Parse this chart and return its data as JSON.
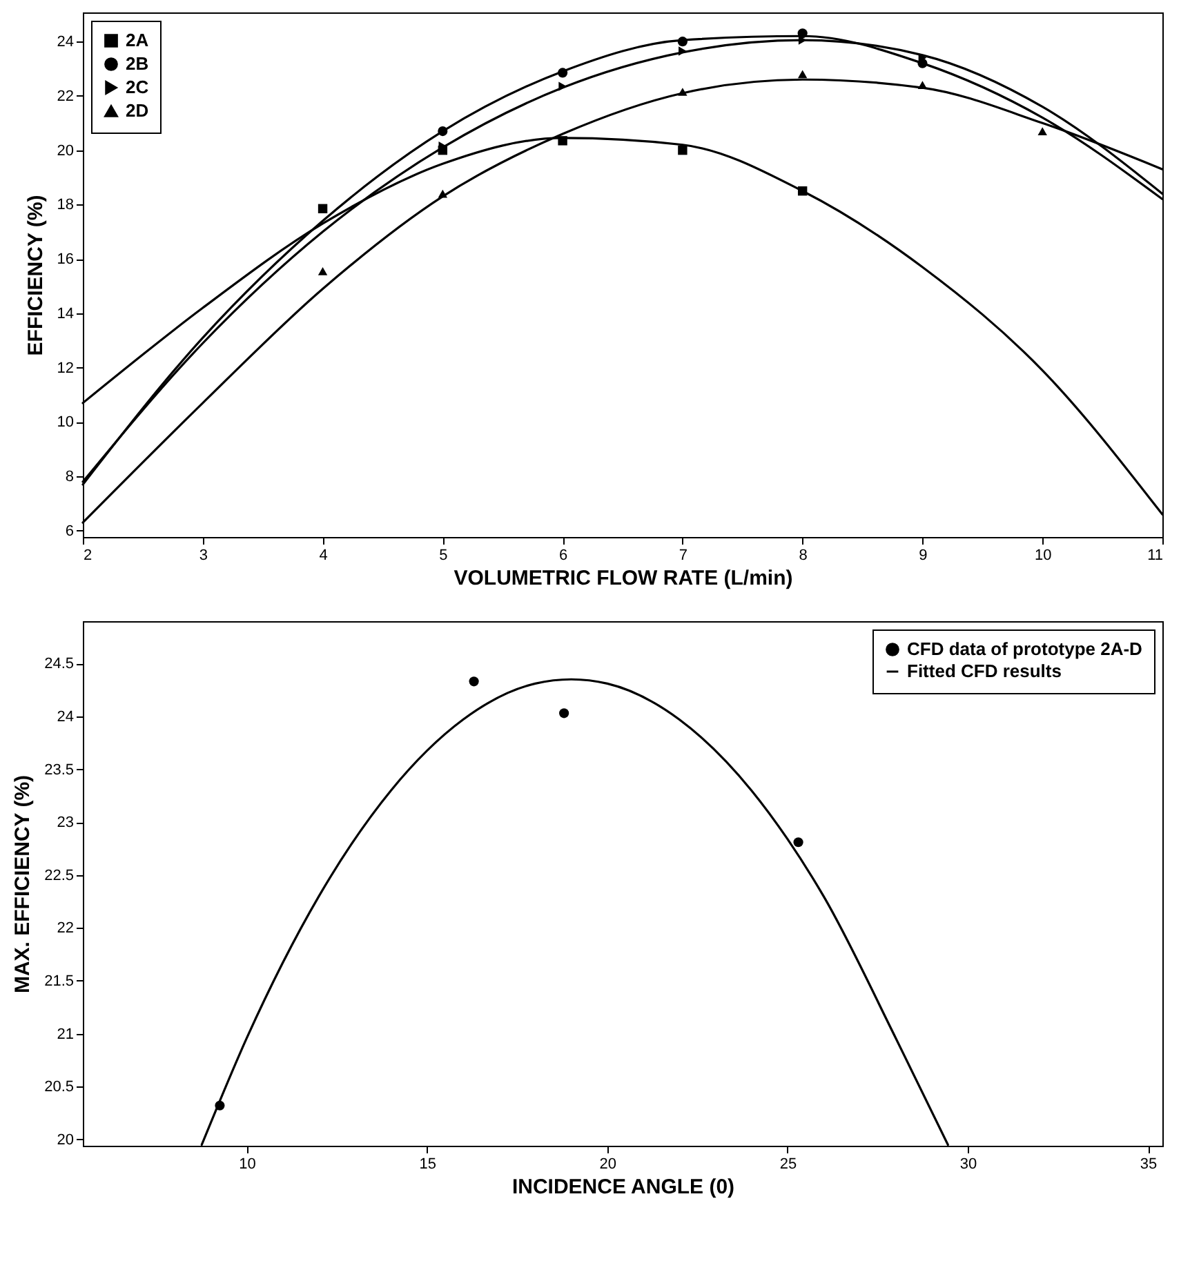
{
  "chart_data": [
    {
      "type": "scatter",
      "xlabel": "VOLUMETRIC FLOW RATE (L/min)",
      "ylabel": "EFFICIENCY (%)",
      "xlim": [
        2,
        11
      ],
      "ylim": [
        5.77,
        25.07
      ],
      "xticks": [
        2,
        3,
        4,
        5,
        6,
        7,
        8,
        9,
        10,
        11
      ],
      "yticks": [
        6,
        8,
        10,
        12,
        14,
        16,
        18,
        20,
        22,
        24
      ],
      "grid": false,
      "legend": "top left",
      "series": [
        {
          "name": "2A",
          "type": "scatter",
          "marker": "square",
          "color": "#000000",
          "x": [
            4,
            5,
            6,
            7,
            8
          ],
          "values": [
            17.85,
            20.0,
            20.35,
            20.0,
            18.5
          ]
        },
        {
          "name": "2B",
          "type": "scatter",
          "marker": "circle",
          "color": "#000000",
          "x": [
            5,
            6,
            7,
            8,
            9
          ],
          "values": [
            20.7,
            22.85,
            24.0,
            24.3,
            23.2
          ]
        },
        {
          "name": "2C",
          "type": "scatter",
          "marker": "triangle-right",
          "color": "#000000",
          "x": [
            5,
            6,
            7,
            8,
            9
          ],
          "values": [
            20.15,
            22.35,
            23.65,
            24.05,
            23.4
          ]
        },
        {
          "name": "2D",
          "type": "scatter",
          "marker": "triangle",
          "color": "#000000",
          "x": [
            4,
            5,
            7,
            8,
            9,
            10
          ],
          "values": [
            15.55,
            18.4,
            22.15,
            22.8,
            22.4,
            20.7
          ]
        },
        {
          "type": "line",
          "color": "#000000",
          "x": [
            2,
            3,
            4,
            5,
            6,
            7,
            8,
            9,
            10,
            11
          ],
          "values": [
            10.7,
            14.2,
            17.3,
            19.5,
            20.45,
            20.2,
            18.5,
            15.7,
            11.9,
            6.6
          ]
        },
        {
          "type": "line",
          "color": "#000000",
          "x": [
            2,
            3,
            4,
            5,
            6,
            7,
            8,
            9,
            10,
            11
          ],
          "values": [
            7.7,
            13.1,
            17.4,
            20.7,
            22.9,
            24.05,
            24.2,
            23.2,
            21.2,
            18.2
          ]
        },
        {
          "type": "line",
          "color": "#000000",
          "x": [
            2,
            3,
            4,
            5,
            6,
            7,
            8,
            9,
            10,
            11
          ],
          "values": [
            7.8,
            12.9,
            17.0,
            20.1,
            22.3,
            23.6,
            24.05,
            23.5,
            21.6,
            18.4
          ]
        },
        {
          "type": "line",
          "color": "#000000",
          "x": [
            2,
            3,
            4,
            5,
            6,
            7,
            8,
            9,
            10,
            11
          ],
          "values": [
            6.3,
            10.7,
            14.9,
            18.3,
            20.6,
            22.1,
            22.6,
            22.3,
            21.0,
            19.3
          ]
        }
      ]
    },
    {
      "type": "scatter",
      "xlabel": "INCIDENCE ANGLE (0)",
      "ylabel": "MAX. EFFICIENCY (%)",
      "xlim": [
        5.45,
        35.4
      ],
      "ylim": [
        19.94,
        24.9
      ],
      "xticks": [
        10,
        15,
        20,
        25,
        30,
        35
      ],
      "yticks": [
        20,
        20.5,
        21,
        21.5,
        22,
        22.5,
        23,
        23.5,
        24,
        24.5
      ],
      "grid": false,
      "legend": "top right",
      "series": [
        {
          "name": "CFD data of prototype 2A-D",
          "type": "scatter",
          "marker": "circle",
          "color": "#000000",
          "x": [
            9.25,
            16.3,
            18.8,
            25.3
          ],
          "values": [
            20.32,
            24.33,
            24.03,
            22.81
          ]
        },
        {
          "name": "Fitted CFD results",
          "type": "line",
          "color": "#000000",
          "x": [
            8.75,
            10,
            12,
            14,
            16,
            18,
            19,
            20,
            22,
            24,
            25,
            26,
            28,
            29.45
          ],
          "values": [
            19.95,
            20.96,
            22.3,
            23.3,
            23.97,
            24.31,
            24.35,
            24.31,
            23.97,
            23.3,
            22.84,
            22.3,
            20.96,
            19.95
          ]
        }
      ]
    }
  ]
}
